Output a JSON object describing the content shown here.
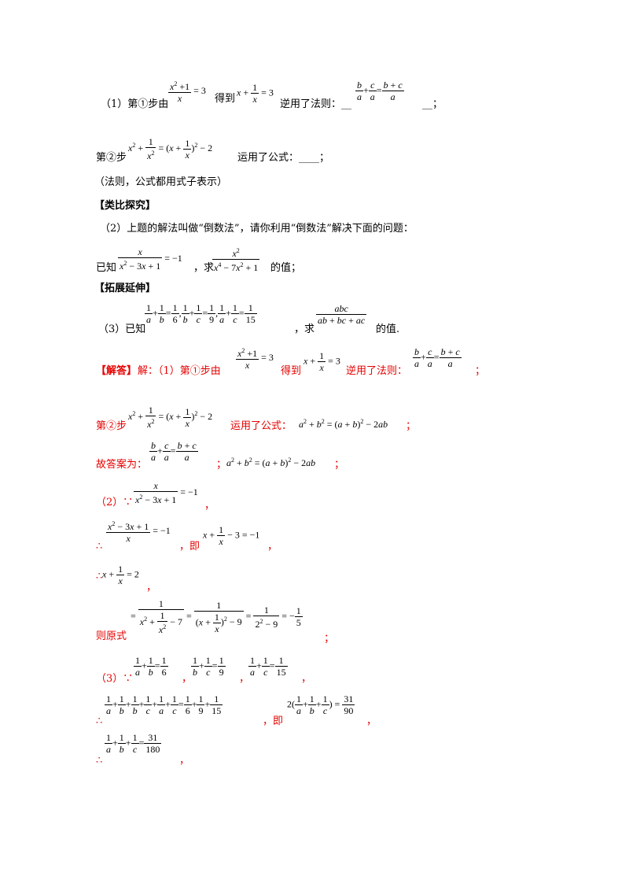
{
  "part1": {
    "line1_a": "（1）第①步由",
    "line1_b": "得到",
    "line1_c": "逆用了法则：__",
    "line1_d": "__；",
    "line2_a": "第②步",
    "line2_b": "运用了公式：____；",
    "note": "（法则，公式都用式子表示）"
  },
  "section_analogy": "【类比探究】",
  "part2": {
    "desc": "（2）上题的解法叫做“倒数法”，请你利用“倒数法”解决下面的问题：",
    "known": "已知",
    "ask_a": "，求",
    "ask_b": "的值；"
  },
  "section_extend": "【拓展延伸】",
  "part3": {
    "known": "（3）已知",
    "ask_a": "，求",
    "ask_b": "的值."
  },
  "answer": {
    "label": "【解答】",
    "p1_a": "解：（1）第①步由",
    "p1_b": "得到",
    "p1_c": "逆用了法则：",
    "p1_d": "；",
    "p2_a": "第②步",
    "p2_b": "运用了公式：",
    "p2_c": "；",
    "p3_a": "故答案为：",
    "p3_b": "；",
    "p3_c": "；",
    "q2_a": "（2）∵",
    "q2_b": "，",
    "q2_c": "∴",
    "q2_d": "，即",
    "q2_e": "，",
    "q2_f": "∴",
    "q2_g": "，",
    "q2_h": "则原式",
    "q2_i": "；",
    "q3_a": "（3）∵",
    "q3_b": "，",
    "q3_c": "，",
    "q3_d": "，",
    "q3_e": "∴",
    "q3_f": "，即",
    "q3_g": "，",
    "q3_h": "∴",
    "q3_i": "，"
  }
}
